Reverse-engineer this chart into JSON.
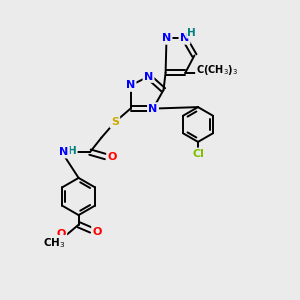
{
  "bg_color": "#ebebeb",
  "bond_color": "#000000",
  "bond_width": 1.4,
  "atom_colors": {
    "N": "#0000ff",
    "S": "#ccaa00",
    "O": "#ff0000",
    "Cl": "#7fbf00",
    "H_label": "#008080",
    "C": "#000000"
  }
}
